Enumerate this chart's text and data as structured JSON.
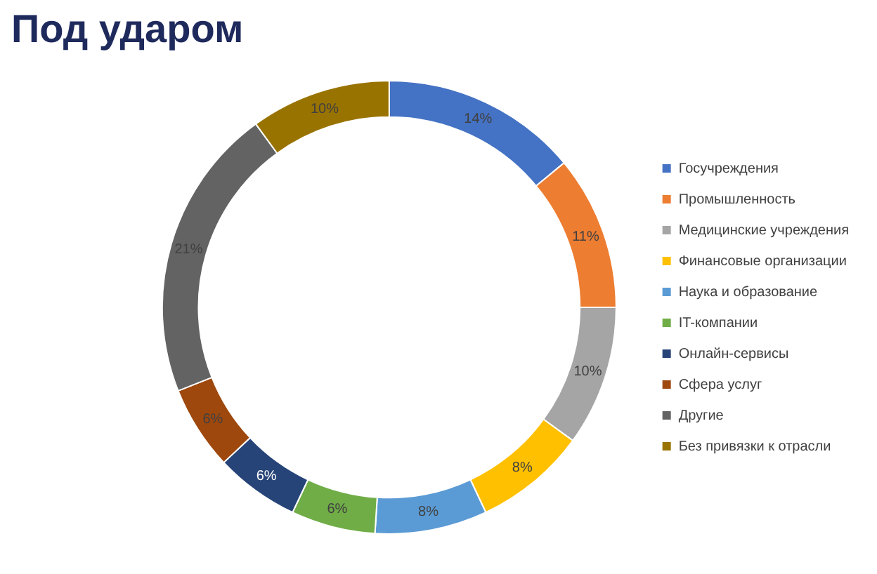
{
  "chart_data": {
    "type": "donut",
    "title": "Под ударом",
    "categories": [
      "Госучреждения",
      "Промышленность",
      "Медицинские учреждения",
      "Финансовые организации",
      "Наука и образование",
      "IT-компании",
      "Онлайн-сервисы",
      "Сфера услуг",
      "Другие",
      "Без привязки к отрасли"
    ],
    "values": [
      14,
      11,
      10,
      8,
      8,
      6,
      6,
      6,
      21,
      10
    ],
    "value_labels": [
      "14%",
      "11%",
      "10%",
      "8%",
      "8%",
      "6%",
      "6%",
      "6%",
      "21%",
      "10%"
    ],
    "colors": [
      "#4472c4",
      "#ed7d31",
      "#a5a5a5",
      "#ffc000",
      "#5b9bd5",
      "#70ad47",
      "#264478",
      "#9e480e",
      "#636363",
      "#997300"
    ],
    "legend": "right"
  }
}
